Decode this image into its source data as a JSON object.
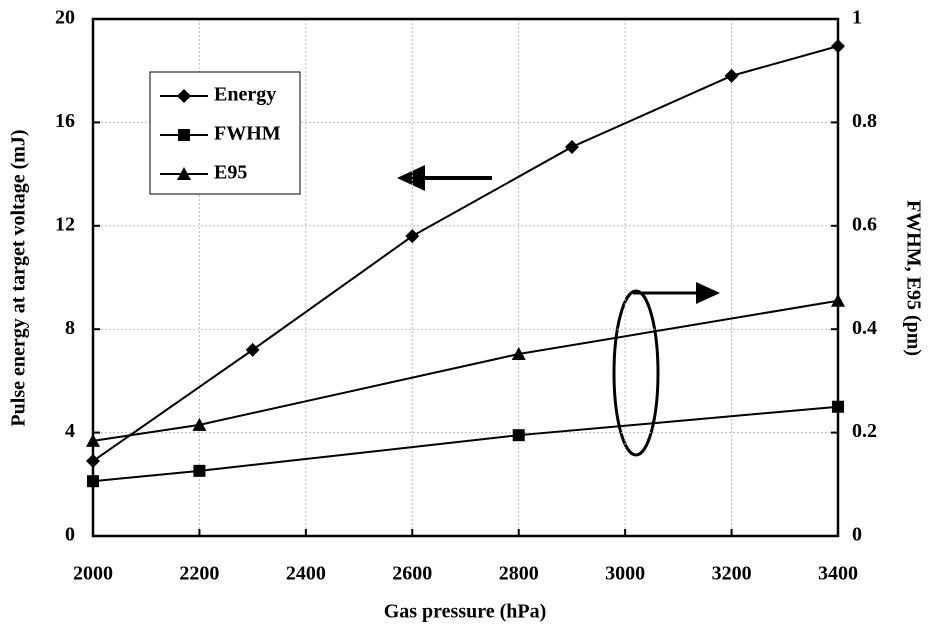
{
  "chart_data": {
    "type": "line",
    "xlabel": "Gas pressure (hPa)",
    "ylabel": "Pulse energy at target voltage (mJ)",
    "y2label": "FWHM, E95 (pm)",
    "xlim": [
      2000,
      3400
    ],
    "xticks": [
      2000,
      2200,
      2400,
      2600,
      2800,
      3000,
      3200,
      3400
    ],
    "ylim": [
      0,
      20
    ],
    "yticks": [
      0,
      4,
      8,
      12,
      16,
      20
    ],
    "y2lim": [
      0,
      1
    ],
    "y2ticks": [
      0,
      0.2,
      0.4,
      0.6,
      0.8,
      1
    ],
    "grid": true,
    "legend": "upper left",
    "series": [
      {
        "name": "Energy",
        "color": "#000000",
        "marker": "diamond",
        "axis": "y",
        "x": [
          2000,
          2300,
          2600,
          2900,
          3200,
          3400
        ],
        "values": [
          2.9,
          7.2,
          11.6,
          15.05,
          17.8,
          18.95
        ]
      },
      {
        "name": "FWHM",
        "color": "#000000",
        "marker": "square",
        "axis": "y2",
        "x": [
          2000,
          2200,
          2800,
          3400
        ],
        "values": [
          0.106,
          0.126,
          0.195,
          0.25
        ]
      },
      {
        "name": "E95",
        "color": "#000000",
        "marker": "triangle",
        "axis": "y2",
        "x": [
          2000,
          2200,
          2800,
          3400
        ],
        "values": [
          0.184,
          0.215,
          0.352,
          0.455
        ]
      }
    ]
  }
}
